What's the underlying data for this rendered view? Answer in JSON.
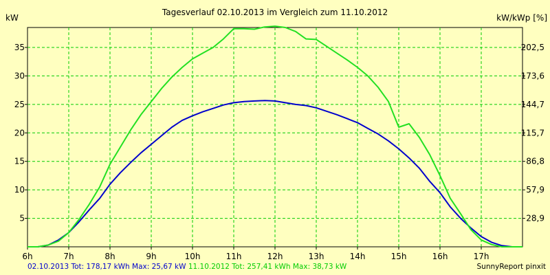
{
  "title": "Tagesverlauf 02.10.2013 im Vergleich zum 11.10.2012",
  "y_label_left": "kW",
  "y_label_right": "kW/kWp [%]",
  "footer": {
    "s1": "02.10.2013 Tot: 178,17 kWh Max: 25,67 kW",
    "s2": "11.10.2012 Tot: 257,41 kWh Max: 38,73 kW",
    "credit": "SunnyReport pinxit"
  },
  "colors": {
    "background": "#ffffc0",
    "grid": "#00cc00",
    "series_2013": "#0000cc",
    "series_2012": "#22e022",
    "footer_2013": "#0000cc",
    "footer_2012": "#00cc00"
  },
  "chart_data": {
    "type": "line",
    "title": "Tagesverlauf 02.10.2013 im Vergleich zum 11.10.2012",
    "xlabel": "",
    "ylabel": "kW",
    "ylabel_right": "kW/kWp [%]",
    "xlim": [
      6,
      18
    ],
    "ylim": [
      0,
      38.5
    ],
    "x_ticks": [
      6,
      7,
      8,
      9,
      10,
      11,
      12,
      13,
      14,
      15,
      16,
      17
    ],
    "x_tick_labels": [
      "6h",
      "7h",
      "8h",
      "9h",
      "10h",
      "11h",
      "12h",
      "13h",
      "14h",
      "15h",
      "16h",
      "17h"
    ],
    "y_ticks": [
      5,
      10,
      15,
      20,
      25,
      30,
      35
    ],
    "y_tick_labels": [
      "5",
      "10",
      "15",
      "20",
      "25",
      "30",
      "35"
    ],
    "y2_tick_labels": [
      "28,9",
      "57,9",
      "86,8",
      "115,7",
      "144,7",
      "173,6",
      "202,5"
    ],
    "grid": true,
    "series": [
      {
        "name": "02.10.2013",
        "color": "#0000cc",
        "points": [
          [
            6,
            0
          ],
          [
            6.25,
            0
          ],
          [
            6.5,
            0.3
          ],
          [
            6.75,
            1.2
          ],
          [
            7,
            2.5
          ],
          [
            7.25,
            4.4
          ],
          [
            7.5,
            6.5
          ],
          [
            7.75,
            8.5
          ],
          [
            8,
            11
          ],
          [
            8.25,
            13
          ],
          [
            8.5,
            14.8
          ],
          [
            8.75,
            16.5
          ],
          [
            9,
            18
          ],
          [
            9.25,
            19.5
          ],
          [
            9.5,
            21
          ],
          [
            9.75,
            22.2
          ],
          [
            10,
            23
          ],
          [
            10.25,
            23.7
          ],
          [
            10.5,
            24.3
          ],
          [
            10.75,
            24.9
          ],
          [
            11,
            25.3
          ],
          [
            11.25,
            25.5
          ],
          [
            11.5,
            25.6
          ],
          [
            11.75,
            25.67
          ],
          [
            12,
            25.6
          ],
          [
            12.25,
            25.3
          ],
          [
            12.5,
            25
          ],
          [
            12.75,
            24.8
          ],
          [
            13,
            24.4
          ],
          [
            13.25,
            23.8
          ],
          [
            13.5,
            23.2
          ],
          [
            13.75,
            22.5
          ],
          [
            14,
            21.8
          ],
          [
            14.25,
            20.8
          ],
          [
            14.5,
            19.8
          ],
          [
            14.75,
            18.6
          ],
          [
            15,
            17.2
          ],
          [
            15.25,
            15.6
          ],
          [
            15.5,
            13.8
          ],
          [
            15.75,
            11.5
          ],
          [
            16,
            9.5
          ],
          [
            16.25,
            7
          ],
          [
            16.5,
            5
          ],
          [
            16.75,
            3.3
          ],
          [
            17,
            1.8
          ],
          [
            17.25,
            0.8
          ],
          [
            17.5,
            0.2
          ],
          [
            17.75,
            0
          ],
          [
            18,
            0
          ]
        ]
      },
      {
        "name": "11.10.2012",
        "color": "#22e022",
        "points": [
          [
            6,
            0
          ],
          [
            6.25,
            0
          ],
          [
            6.5,
            0.3
          ],
          [
            6.75,
            1
          ],
          [
            7,
            2.5
          ],
          [
            7.25,
            4.8
          ],
          [
            7.5,
            7.5
          ],
          [
            7.75,
            10.5
          ],
          [
            8,
            14.5
          ],
          [
            8.25,
            17.5
          ],
          [
            8.5,
            20.5
          ],
          [
            8.75,
            23.2
          ],
          [
            9,
            25.5
          ],
          [
            9.25,
            27.8
          ],
          [
            9.5,
            29.8
          ],
          [
            9.75,
            31.5
          ],
          [
            10,
            33
          ],
          [
            10.25,
            34
          ],
          [
            10.5,
            35
          ],
          [
            10.75,
            36.5
          ],
          [
            11,
            38.3
          ],
          [
            11.25,
            38.3
          ],
          [
            11.5,
            38.2
          ],
          [
            11.75,
            38.6
          ],
          [
            12,
            38.73
          ],
          [
            12.25,
            38.5
          ],
          [
            12.5,
            37.8
          ],
          [
            12.75,
            36.5
          ],
          [
            13,
            36.4
          ],
          [
            13.25,
            35.2
          ],
          [
            13.5,
            34
          ],
          [
            13.75,
            32.8
          ],
          [
            14,
            31.5
          ],
          [
            14.25,
            30
          ],
          [
            14.5,
            28
          ],
          [
            14.75,
            25.5
          ],
          [
            15,
            21
          ],
          [
            15.25,
            21.6
          ],
          [
            15.5,
            19.2
          ],
          [
            15.75,
            16.2
          ],
          [
            16,
            12.5
          ],
          [
            16.25,
            8.5
          ],
          [
            16.5,
            5.8
          ],
          [
            16.75,
            3
          ],
          [
            17,
            1.2
          ],
          [
            17.25,
            0.4
          ],
          [
            17.5,
            0
          ],
          [
            17.75,
            0
          ],
          [
            18,
            0
          ]
        ]
      }
    ]
  }
}
